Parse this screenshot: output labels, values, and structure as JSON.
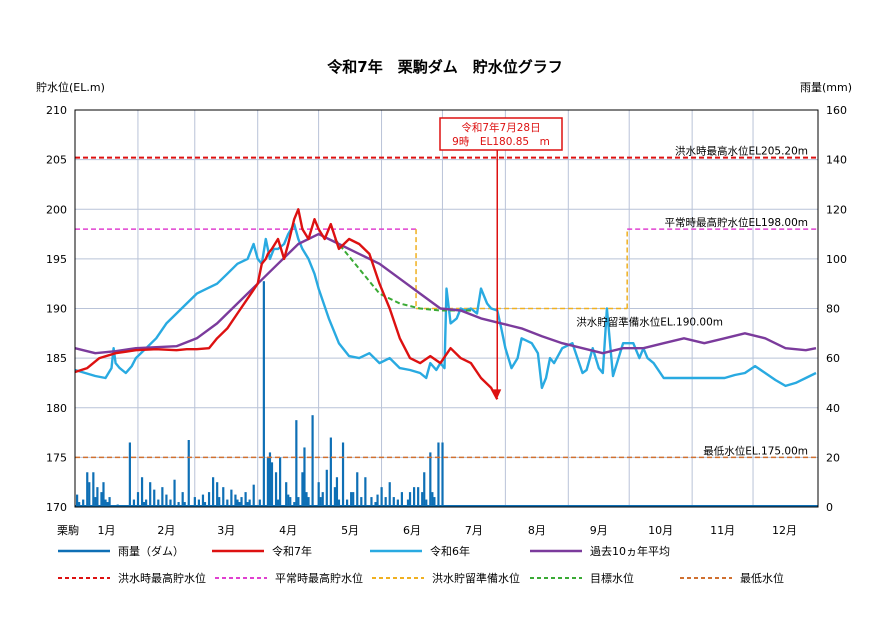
{
  "chart_data": {
    "type": "line",
    "title": "令和7年　栗駒ダム　貯水位グラフ",
    "ylabel_left": "貯水位(EL.m)",
    "ylabel_right": "雨量(mm)",
    "x_label_left": "栗駒",
    "months": [
      "1月",
      "2月",
      "3月",
      "4月",
      "5月",
      "6月",
      "7月",
      "8月",
      "9月",
      "10月",
      "11月",
      "12月"
    ],
    "ylim_left": [
      170,
      210
    ],
    "yticks_left": [
      170,
      175,
      180,
      185,
      190,
      195,
      200,
      205,
      210
    ],
    "ylim_right": [
      0,
      160
    ],
    "yticks_right": [
      0,
      20,
      40,
      60,
      80,
      100,
      120,
      140,
      160
    ],
    "grid": true,
    "reference_lines": [
      {
        "name": "洪水時最高水位",
        "label": "洪水時最高水位EL205.20m",
        "value": 205.2,
        "color": "#dd1111"
      },
      {
        "name": "平常時最高貯水位",
        "label": "平常時最高貯水位EL198.00m",
        "value": 198.0,
        "color": "#e040d0"
      },
      {
        "name": "洪水貯留準備水位",
        "label": "洪水貯留準備水位EL.190.00m",
        "value": 190.0,
        "color": "#f0b020"
      },
      {
        "name": "最低水位",
        "label": "最低水位EL.175.00m",
        "value": 175.0,
        "color": "#d07030"
      }
    ],
    "annotation": {
      "line1": "令和7年7月28日",
      "line2": "9時　EL180.85　m",
      "day": 208,
      "value": 180.85
    },
    "series": [
      {
        "name": "令和7年",
        "color": "#dd1111",
        "x": [
          0,
          6,
          12,
          20,
          30,
          40,
          50,
          55,
          60,
          66,
          70,
          75,
          80,
          85,
          90,
          92,
          94,
          95,
          97,
          100,
          103,
          105,
          108,
          110,
          112,
          115,
          118,
          120,
          123,
          126,
          130,
          135,
          140,
          145,
          150,
          155,
          160,
          165,
          170,
          175,
          180,
          185,
          190,
          195,
          200,
          205,
          208
        ],
        "y": [
          183.6,
          184,
          185,
          185.5,
          185.8,
          185.9,
          185.8,
          185.9,
          185.9,
          186,
          187,
          188,
          189.5,
          191,
          192.5,
          194.5,
          195,
          195.5,
          196,
          197,
          195,
          196.5,
          199,
          200,
          198,
          197,
          199,
          198,
          197,
          198.5,
          196,
          197,
          196.5,
          195.5,
          192.5,
          190,
          187,
          185,
          184.5,
          185.2,
          184.5,
          186,
          185,
          184.5,
          183,
          182,
          180.85
        ]
      },
      {
        "name": "令和6年",
        "color": "#29aae1",
        "x": [
          0,
          5,
          10,
          15,
          18,
          19,
          20,
          22,
          25,
          28,
          30,
          35,
          40,
          45,
          50,
          55,
          60,
          65,
          70,
          75,
          80,
          85,
          88,
          90,
          92,
          94,
          96,
          98,
          100,
          103,
          105,
          108,
          110,
          112,
          115,
          118,
          120,
          125,
          130,
          135,
          140,
          145,
          150,
          155,
          160,
          165,
          170,
          173,
          175,
          178,
          180,
          182,
          183,
          185,
          188,
          190,
          192,
          195,
          198,
          200,
          203,
          205,
          208,
          210,
          212,
          215,
          218,
          220,
          225,
          228,
          230,
          232,
          234,
          236,
          240,
          245,
          250,
          252,
          255,
          258,
          260,
          262,
          265,
          270,
          275,
          278,
          280,
          282,
          285,
          290,
          295,
          300,
          305,
          310,
          315,
          320,
          325,
          330,
          335,
          340,
          345,
          350,
          355,
          360,
          365
        ],
        "y": [
          183.8,
          183.5,
          183.2,
          183,
          184,
          186,
          184.5,
          184,
          183.5,
          184.2,
          185,
          186,
          187,
          188.5,
          189.5,
          190.5,
          191.5,
          192,
          192.5,
          193.5,
          194.5,
          195,
          196.5,
          195,
          194.5,
          197,
          195,
          196,
          196,
          196.5,
          197.5,
          198.5,
          197,
          196,
          195,
          193.5,
          192,
          189,
          186.5,
          185.2,
          185,
          185.5,
          184.5,
          185,
          184,
          183.8,
          183.5,
          183,
          184.5,
          183.8,
          184.5,
          184,
          192,
          188.5,
          189,
          190,
          189.8,
          190,
          189.5,
          192,
          190.5,
          190,
          189.8,
          188,
          186,
          184,
          185,
          187,
          186.5,
          185.5,
          182,
          183,
          185,
          184.5,
          186,
          186.5,
          183.5,
          183.8,
          186,
          184,
          183.5,
          190,
          183.2,
          186.5,
          186.5,
          185,
          186,
          185,
          184.5,
          183,
          183,
          183,
          183,
          183,
          183,
          183,
          183.3,
          183.5,
          184.2,
          183.5,
          182.8,
          182.2,
          182.5,
          183,
          183.5
        ]
      },
      {
        "name": "過去10ヵ年平均",
        "color": "#7b3b9c",
        "x": [
          0,
          10,
          20,
          30,
          40,
          50,
          60,
          70,
          80,
          90,
          100,
          110,
          120,
          130,
          140,
          150,
          160,
          170,
          180,
          190,
          200,
          210,
          220,
          230,
          240,
          250,
          260,
          270,
          280,
          290,
          300,
          310,
          320,
          330,
          340,
          350,
          360,
          365
        ],
        "y": [
          186,
          185.5,
          185.7,
          186,
          186.1,
          186.2,
          187,
          188.5,
          190.5,
          192.5,
          194.5,
          196.5,
          197.5,
          196.5,
          195.5,
          194.5,
          193,
          191.5,
          190,
          189.8,
          189,
          188.5,
          188,
          187.2,
          186.5,
          186,
          185.5,
          186,
          186,
          186.5,
          187,
          186.5,
          187,
          187.5,
          187,
          186,
          185.8,
          186
        ]
      },
      {
        "name": "目標水位",
        "color": "#3aaa35",
        "dash": true,
        "x": [
          128,
          140,
          150,
          160,
          170,
          180,
          190,
          195
        ],
        "y": [
          197,
          194,
          191.5,
          190.5,
          190,
          189.8,
          189.8,
          189.8
        ]
      }
    ],
    "rain": {
      "name": "雨量（ダム）",
      "color": "#0e6fb5",
      "unit": "mm",
      "days": [
        0,
        1,
        3,
        5,
        6,
        8,
        9,
        10,
        12,
        13,
        14,
        15,
        16,
        20,
        26,
        28,
        30,
        32,
        33,
        34,
        36,
        38,
        40,
        42,
        44,
        46,
        48,
        50,
        52,
        53,
        55,
        58,
        60,
        62,
        63,
        65,
        67,
        69,
        70,
        72,
        74,
        76,
        78,
        79,
        80,
        81,
        83,
        84,
        85,
        87,
        90,
        92,
        94,
        95,
        96,
        98,
        99,
        100,
        103,
        104,
        105,
        107,
        108,
        109,
        111,
        112,
        113,
        114,
        116,
        119,
        120,
        121,
        123,
        125,
        127,
        128,
        129,
        131,
        133,
        135,
        136,
        138,
        140,
        142,
        145,
        147,
        148,
        150,
        152,
        154,
        156,
        158,
        160,
        163,
        164,
        166,
        168,
        170,
        171,
        172,
        174,
        175,
        176,
        178,
        180
      ],
      "values": [
        5,
        2,
        3,
        14,
        10,
        14,
        4,
        8,
        6,
        10,
        3,
        2,
        4,
        1,
        26,
        3,
        6,
        12,
        2,
        3,
        10,
        7,
        3,
        8,
        5,
        3,
        11,
        2,
        6,
        2,
        27,
        4,
        3,
        5,
        2,
        6,
        12,
        10,
        4,
        8,
        3,
        7,
        5,
        3,
        2,
        4,
        6,
        2,
        3,
        9,
        3,
        91,
        20,
        22,
        18,
        14,
        3,
        20,
        10,
        5,
        4,
        2,
        35,
        4,
        14,
        24,
        6,
        4,
        37,
        10,
        4,
        6,
        15,
        28,
        8,
        12,
        3,
        26,
        3,
        6,
        6,
        14,
        4,
        12,
        4,
        2,
        5,
        8,
        4,
        10,
        4,
        3,
        6,
        3,
        6,
        8,
        8,
        6,
        14,
        3,
        22,
        6,
        4,
        26,
        26
      ]
    }
  },
  "legend": {
    "items": [
      {
        "label": "雨量（ダム）",
        "color": "#0e6fb5",
        "style": "solid"
      },
      {
        "label": "令和7年",
        "color": "#dd1111",
        "style": "solid"
      },
      {
        "label": "令和6年",
        "color": "#29aae1",
        "style": "solid"
      },
      {
        "label": "過去10ヵ年平均",
        "color": "#7b3b9c",
        "style": "solid"
      },
      {
        "label": "洪水時最高貯水位",
        "color": "#dd1111",
        "style": "dashed"
      },
      {
        "label": "平常時最高貯水位",
        "color": "#e040d0",
        "style": "dashed"
      },
      {
        "label": "洪水貯留準備水位",
        "color": "#f0b020",
        "style": "dashed"
      },
      {
        "label": "目標水位",
        "color": "#3aaa35",
        "style": "dashed"
      },
      {
        "label": "最低水位",
        "color": "#d07030",
        "style": "dashed"
      }
    ]
  }
}
